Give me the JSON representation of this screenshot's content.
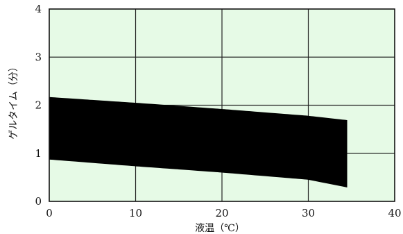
{
  "chart_data": {
    "type": "area",
    "title": "",
    "xlabel": "液温（℃）",
    "ylabel": "ゲルタイム（分）",
    "xlim": [
      0,
      40
    ],
    "ylim": [
      0,
      4
    ],
    "x_ticks": [
      "0",
      "10",
      "20",
      "30",
      "40"
    ],
    "y_ticks": [
      "0",
      "1",
      "2",
      "3",
      "4"
    ],
    "grid": true,
    "plot_background": "#e6fae6",
    "band_color": "#000000",
    "band": {
      "x": [
        0,
        10,
        20,
        30,
        34.5
      ],
      "upper": [
        2.17,
        2.05,
        1.92,
        1.78,
        1.69
      ],
      "lower": [
        0.87,
        0.73,
        0.6,
        0.45,
        0.29
      ]
    }
  }
}
